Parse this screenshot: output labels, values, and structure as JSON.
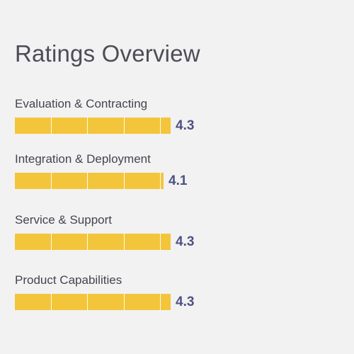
{
  "title": "Ratings Overview",
  "max_score": 5,
  "colors": {
    "bar": "#f3c53b",
    "value_text": "#4e5183",
    "title_text": "#4d4d56",
    "background": "#f2f2f2"
  },
  "ratings": [
    {
      "label": "Evaluation & Contracting",
      "value_text": "4.3",
      "score": 4.3
    },
    {
      "label": "Integration & Deployment",
      "value_text": "4.1",
      "score": 4.1
    },
    {
      "label": "Service & Support",
      "value_text": "4.3",
      "score": 4.3
    },
    {
      "label": "Product Capabilities",
      "value_text": "4.3",
      "score": 4.3
    }
  ]
}
